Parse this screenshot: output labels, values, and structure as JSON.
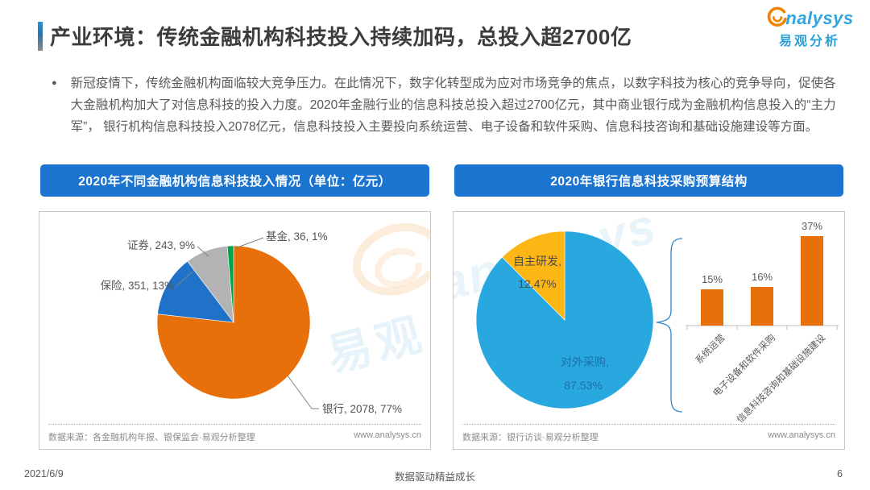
{
  "header": {
    "title": "产业环境：传统金融机构科技投入持续加码，总投入超2700亿",
    "logo": {
      "brand": "nalysys",
      "brand_cn": "易观分析"
    }
  },
  "intro": {
    "bullet": "●",
    "text": "新冠疫情下，传统金融机构面临较大竞争压力。在此情况下，数字化转型成为应对市场竞争的焦点，以数字科技为核心的竞争导向，促使各大金融机构加大了对信息科技的投入力度。2020年金融行业的信息科技总投入超过2700亿元，其中商业银行成为金融机构信息投入的“主力军”， 银行机构信息科技投入2078亿元，信息科技投入主要投向系统运营、电子设备和软件采购、信息科技咨询和基础设施建设等方面。"
  },
  "panels": {
    "left": {
      "header": "2020年不同金融机构信息科技投入情况（单位：亿元）",
      "source": "数据来源：各金融机构年报、银保监会·易观分析整理",
      "site": "www.analysys.cn"
    },
    "right": {
      "header": "2020年银行信息科技采购预算结构",
      "source": "数据来源：银行访谈·易观分析整理",
      "site": "www.analysys.cn"
    }
  },
  "watermarks": {
    "cn": "易观",
    "en": "analysys"
  },
  "footer": {
    "date": "2021/6/9",
    "slogan": "数据驱动精益成长",
    "page": "6"
  },
  "chart_data": [
    {
      "type": "pie",
      "title": "2020年不同金融机构信息科技投入情况（单位：亿元）",
      "labels": [
        "银行",
        "保险",
        "证券",
        "基金"
      ],
      "values": [
        2078,
        351,
        243,
        36
      ],
      "percents": [
        77,
        13,
        9,
        1
      ],
      "callouts": [
        "银行, 2078, 77%",
        "保险, 351, 13%",
        "证券, 243, 9%",
        "基金, 36, 1%"
      ],
      "colors": [
        "#E8700B",
        "#1F72C8",
        "#B3B3B3",
        "#00A550"
      ],
      "start_angle_deg": 0,
      "direction": "clockwise",
      "unit": "亿元"
    },
    {
      "type": "pie",
      "title": "2020年银行信息科技采购预算结构",
      "labels": [
        "对外采购",
        "自主研发"
      ],
      "values": [
        87.53,
        12.47
      ],
      "inner_labels": [
        {
          "name": "对外采购,",
          "pct": "87.53%"
        },
        {
          "name": "自主研发,",
          "pct": "12.47%"
        }
      ],
      "colors": [
        "#29A8E0",
        "#FDB714"
      ],
      "start_angle_deg": 0,
      "direction": "clockwise"
    },
    {
      "type": "bar",
      "categories": [
        "系统运营",
        "电子设备和软件采购",
        "信息科技咨询和基础设施建设"
      ],
      "values": [
        15,
        16,
        37
      ],
      "value_labels": [
        "15%",
        "16%",
        "37%"
      ],
      "color": "#E8700B",
      "ylim": [
        0,
        40
      ],
      "grid": false,
      "legend": "none"
    }
  ]
}
